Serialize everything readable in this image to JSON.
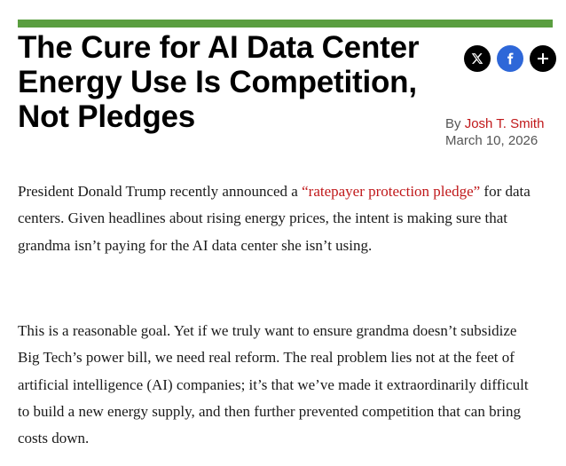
{
  "article": {
    "headline": "The Cure for AI Data Center Energy Use Is Competition, Not Pledges",
    "byline_prefix": "By",
    "author": "Josh T. Smith",
    "date": "March 10, 2026",
    "paragraph1": {
      "before_link": "President Donald Trump recently announced a ",
      "link_text": "“ratepayer protection pledge”",
      "after_link": " for data centers. Given headlines about rising energy prices, the intent is making sure that grandma isn’t paying for the AI data center she isn’t using."
    },
    "paragraph2": "This is a reasonable goal. Yet if we truly want to ensure grandma doesn’t subsidize Big Tech’s power bill, we need real reform. The real problem lies not at the feet of artificial intelligence (AI) companies; it’s that we’ve made it extraordinarily difficult to build a new energy supply, and then further prevented competition that can bring costs down."
  },
  "share": {
    "icons": [
      "x-icon",
      "facebook-icon",
      "plus-icon"
    ]
  },
  "colors": {
    "accent_bar": "#5a9e40",
    "link": "#c0181a",
    "facebook": "#2e67d8"
  }
}
